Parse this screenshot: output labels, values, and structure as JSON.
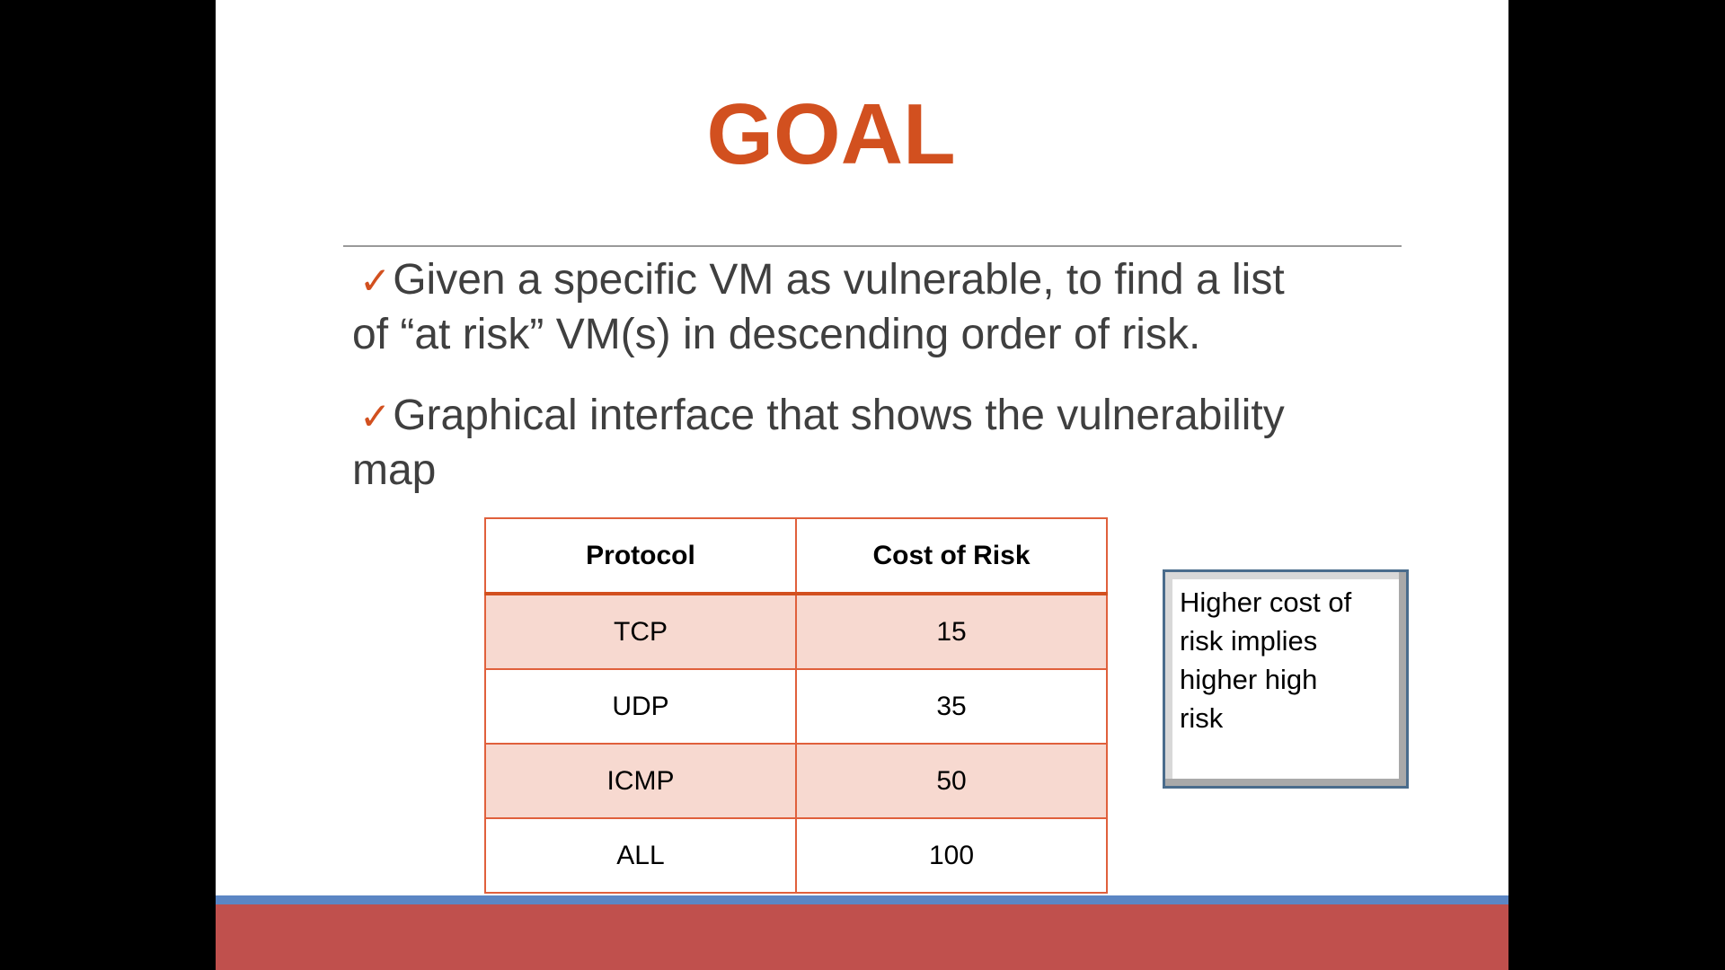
{
  "slide": {
    "title": "GOAL",
    "bullets": [
      {
        "check": "✓",
        "line1": "Given a specific VM as vulnerable, to find a list",
        "line2": "of “at risk” VM(s) in descending order of risk."
      },
      {
        "check": "✓",
        "line1": "Graphical interface that shows the vulnerability",
        "line2": "map"
      }
    ],
    "table": {
      "headers": [
        "Protocol",
        "Cost of Risk"
      ],
      "rows": [
        [
          "TCP",
          "15"
        ],
        [
          "UDP",
          "35"
        ],
        [
          "ICMP",
          "50"
        ],
        [
          "ALL",
          "100"
        ]
      ]
    },
    "note": {
      "lines": [
        "Higher cost of",
        "risk implies",
        "higher high",
        "risk"
      ]
    }
  },
  "colors": {
    "title": "#d2501f",
    "body_text": "#3f3f3f",
    "table_border": "#e0603c",
    "table_band": "#f7d9d0",
    "footer_blue": "#5b86c4",
    "footer_red": "#c0504d",
    "note_border": "#4a6c8c"
  }
}
